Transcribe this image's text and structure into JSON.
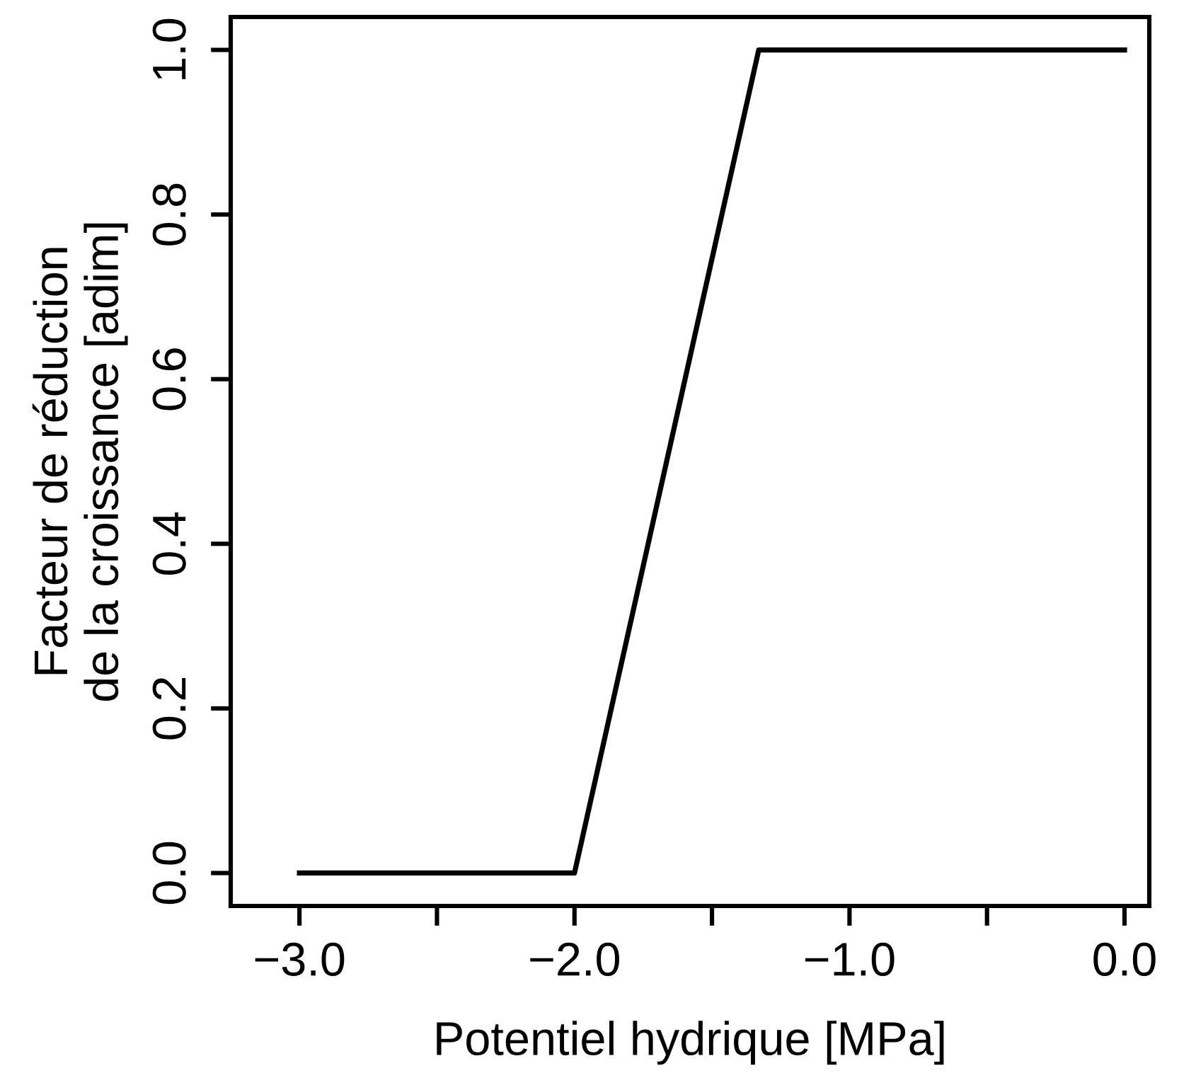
{
  "chart_data": {
    "type": "line",
    "xlabel": "Potentiel hydrique [MPa]",
    "ylabel": "Facteur de réduction\nde la croissance [adim]",
    "x": [
      -3.0,
      -2.0,
      -1.33,
      0.0
    ],
    "series": [
      {
        "color": "#000000",
        "values": [
          0.0,
          0.0,
          1.0,
          1.0
        ]
      }
    ],
    "xlim": [
      -3.25,
      0.09
    ],
    "ylim": [
      -0.04,
      1.04
    ],
    "xticks": [
      {
        "value": -3.0,
        "label": "−3.0"
      },
      {
        "value": -2.5,
        "label": null
      },
      {
        "value": -2.0,
        "label": "−2.0"
      },
      {
        "value": -1.5,
        "label": null
      },
      {
        "value": -1.0,
        "label": "−1.0"
      },
      {
        "value": -0.5,
        "label": null
      },
      {
        "value": 0.0,
        "label": "0.0"
      }
    ],
    "yticks": [
      {
        "value": 0.0,
        "label": "0.0"
      },
      {
        "value": 0.2,
        "label": "0.2"
      },
      {
        "value": 0.4,
        "label": "0.4"
      },
      {
        "value": 0.6,
        "label": "0.6"
      },
      {
        "value": 0.8,
        "label": "0.8"
      },
      {
        "value": 1.0,
        "label": "1.0"
      }
    ],
    "grid": false,
    "legend": false,
    "marker": "none",
    "line_style": "solid"
  }
}
